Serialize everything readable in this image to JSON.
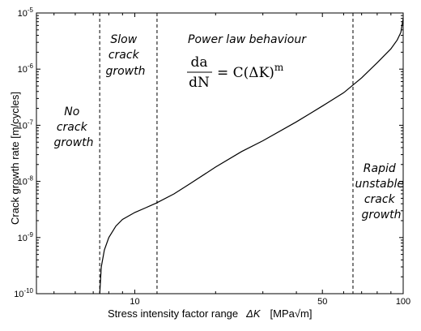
{
  "chart_data": {
    "type": "line",
    "xlabel": "Stress intensity factor range",
    "xlabel_symbol": "ΔK",
    "xlabel_unit": "[MPa√m]",
    "ylabel": "Crack growth rate [m/cycles]",
    "x_scale": "log",
    "y_scale": "log",
    "xlim": [
      4.3,
      100
    ],
    "ylim": [
      1e-10,
      1e-05
    ],
    "grid": false,
    "x_ticks": [
      {
        "value": 10,
        "label": "10"
      },
      {
        "value": 50,
        "label": "50"
      },
      {
        "value": 100,
        "label": "100"
      }
    ],
    "y_ticks": [
      {
        "value": 1e-10,
        "base": "10",
        "exp": "-10"
      },
      {
        "value": 1e-09,
        "base": "10",
        "exp": "-9"
      },
      {
        "value": 1e-08,
        "base": "10",
        "exp": "-8"
      },
      {
        "value": 1e-07,
        "base": "10",
        "exp": "-7"
      },
      {
        "value": 1e-06,
        "base": "10",
        "exp": "-6"
      },
      {
        "value": 1e-05,
        "base": "10",
        "exp": "-5"
      }
    ],
    "series": [
      {
        "x": [
          7.4,
          7.5,
          7.7,
          8.0,
          8.5,
          9.0,
          10.0,
          11.0,
          12.0,
          14.0,
          16.0,
          20.0,
          25.0,
          30.0,
          40.0,
          50.0,
          60.0,
          70.0,
          80.0,
          90.0,
          95.0,
          98.0,
          100.0
        ],
        "y": [
          1e-10,
          3e-10,
          6e-10,
          1e-09,
          1.6e-09,
          2.1e-09,
          2.8e-09,
          3.4e-09,
          4.1e-09,
          6e-09,
          9e-09,
          1.8e-08,
          3.4e-08,
          5.3e-08,
          1.15e-07,
          2.2e-07,
          3.8e-07,
          7e-07,
          1.3e-06,
          2.3e-06,
          3.3e-06,
          4.5e-06,
          8e-06
        ]
      }
    ],
    "dashed_lines_x": [
      7.4,
      12.1,
      65.0
    ],
    "annotations": {
      "no_growth": [
        "No",
        "crack",
        "growth"
      ],
      "slow_growth": [
        "Slow",
        "crack",
        "growth"
      ],
      "power_law": "Power law behaviour",
      "rapid_growth": [
        "Rapid",
        "unstable",
        "crack",
        "growth"
      ],
      "formula": {
        "lhs_num": "da",
        "lhs_den": "dN",
        "rhs": "= C(ΔK)",
        "exp": "m"
      }
    }
  }
}
